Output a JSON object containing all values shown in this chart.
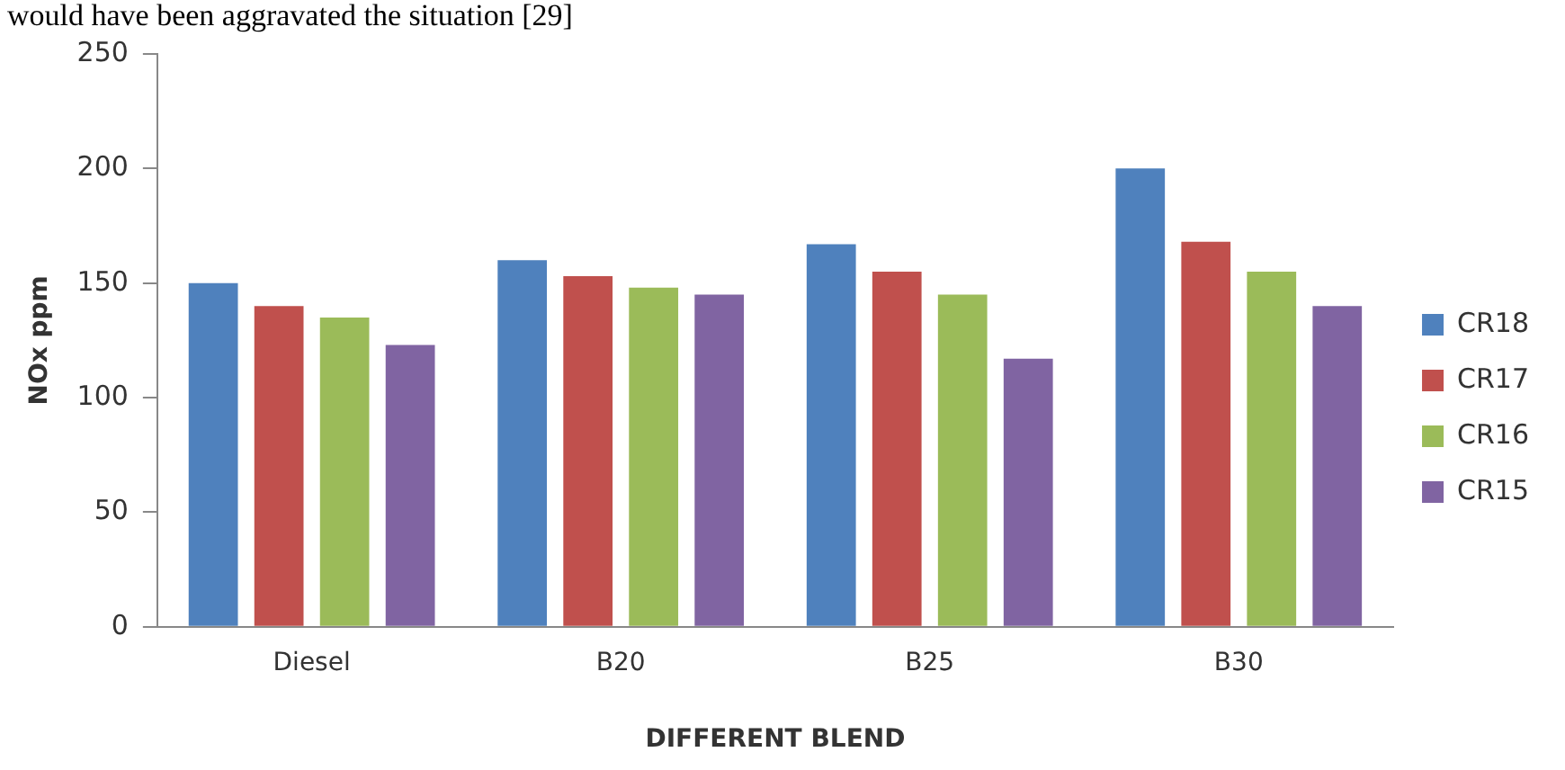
{
  "chart_data": {
    "type": "bar",
    "xlabel": "DIFFERENT BLEND",
    "ylabel": "NOx ppm",
    "annotations": [
      "would have been aggravated the situation [29]"
    ],
    "categories": [
      "Diesel",
      "B20",
      "B25",
      "B30"
    ],
    "series": [
      {
        "name": "CR18",
        "color": "#4f81bd",
        "values": [
          150,
          160,
          167,
          200
        ]
      },
      {
        "name": "CR17",
        "color": "#c0504d",
        "values": [
          140,
          153,
          155,
          168
        ]
      },
      {
        "name": "CR16",
        "color": "#9bbb59",
        "values": [
          135,
          148,
          145,
          155
        ]
      },
      {
        "name": "CR15",
        "color": "#8064a2",
        "values": [
          123,
          145,
          117,
          140
        ]
      }
    ],
    "ylim": [
      0,
      250
    ],
    "yticks": [
      0,
      50,
      100,
      150,
      200,
      250
    ],
    "grid": false,
    "legend": "right"
  }
}
